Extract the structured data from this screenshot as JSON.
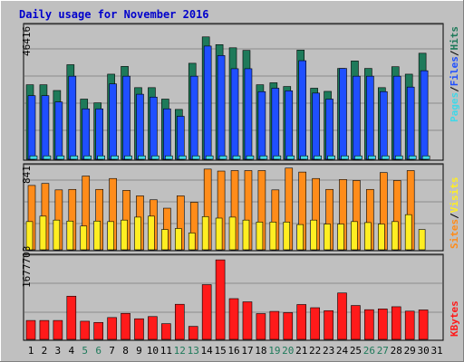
{
  "title": "Daily usage for November 2016",
  "colors": {
    "background": "#c0c0c0",
    "title": "#0000cc",
    "hits": "#1e7a5a",
    "files": "#1f4fff",
    "pages": "#40d8e8",
    "visits": "#ff8c1a",
    "sites": "#ffee22",
    "kbytes": "#ff1a1a",
    "weekend_label": "#1e7a5a",
    "weekday_label": "#000000"
  },
  "panels": {
    "top": {
      "max_label": "46416",
      "legend": [
        "Pages",
        "/",
        "Files",
        "/",
        "Hits"
      ]
    },
    "middle": {
      "max_label": "841",
      "legend": [
        "Sites",
        "/",
        "Visits"
      ]
    },
    "bottom": {
      "max_label": "1677703",
      "legend": [
        "KBytes"
      ]
    }
  },
  "chart_data": {
    "type": "bar",
    "title": "Daily usage for November 2016",
    "categories": [
      "1",
      "2",
      "3",
      "4",
      "5",
      "6",
      "7",
      "8",
      "9",
      "10",
      "11",
      "12",
      "13",
      "14",
      "15",
      "16",
      "17",
      "18",
      "19",
      "20",
      "21",
      "22",
      "23",
      "24",
      "25",
      "26",
      "27",
      "28",
      "29",
      "30",
      "31"
    ],
    "weekend_days": [
      "5",
      "6",
      "12",
      "13",
      "19",
      "20",
      "26",
      "27"
    ],
    "series": [
      {
        "name": "Hits",
        "panel": "top",
        "ylim": [
          0,
          46416
        ],
        "values": [
          26000,
          26000,
          24000,
          33000,
          21000,
          19700,
          29700,
          32400,
          25000,
          25000,
          21000,
          17400,
          33500,
          42700,
          40000,
          38900,
          38000,
          26000,
          26700,
          25400,
          38100,
          24800,
          23700,
          31700,
          34300,
          31700,
          25000,
          32300,
          29700,
          37000,
          0
        ]
      },
      {
        "name": "Files",
        "panel": "top",
        "ylim": [
          0,
          46416
        ],
        "values": [
          22200,
          22200,
          20000,
          29000,
          17600,
          17600,
          26300,
          29000,
          22700,
          21700,
          17600,
          15000,
          29000,
          39500,
          36200,
          31600,
          31600,
          23600,
          24800,
          23900,
          34400,
          23100,
          21000,
          31700,
          29000,
          29000,
          23600,
          29000,
          25200,
          30900,
          0
        ]
      },
      {
        "name": "Pages",
        "panel": "top",
        "ylim": [
          0,
          46416
        ],
        "values": [
          1200,
          1200,
          1200,
          1200,
          1200,
          1200,
          1200,
          1200,
          1200,
          1200,
          1200,
          1200,
          1200,
          1200,
          1200,
          1200,
          1200,
          1200,
          1200,
          1200,
          1200,
          1200,
          1200,
          1200,
          1200,
          1200,
          1200,
          1200,
          1200,
          1200,
          0
        ]
      },
      {
        "name": "Visits",
        "panel": "middle",
        "ylim": [
          0,
          841
        ],
        "values": [
          650,
          670,
          605,
          610,
          745,
          610,
          720,
          600,
          545,
          505,
          420,
          545,
          480,
          815,
          795,
          800,
          800,
          800,
          605,
          825,
          785,
          720,
          610,
          710,
          700,
          610,
          780,
          700,
          800,
          0,
          0
        ]
      },
      {
        "name": "Sites",
        "panel": "middle",
        "ylim": [
          0,
          841
        ],
        "values": [
          285,
          340,
          300,
          290,
          240,
          290,
          285,
          300,
          330,
          340,
          205,
          215,
          170,
          335,
          320,
          330,
          300,
          280,
          280,
          280,
          255,
          300,
          260,
          260,
          285,
          275,
          260,
          285,
          355,
          205,
          0
        ]
      },
      {
        "name": "KBytes",
        "panel": "bottom",
        "ylim": [
          0,
          1677703
        ],
        "values": [
          385000,
          385000,
          385000,
          880000,
          370000,
          345000,
          445000,
          530000,
          420000,
          465000,
          320000,
          715000,
          265000,
          1115000,
          1620000,
          830000,
          765000,
          525000,
          570000,
          545000,
          710000,
          645000,
          585000,
          945000,
          690000,
          605000,
          620000,
          665000,
          575000,
          600000,
          0
        ]
      }
    ]
  }
}
